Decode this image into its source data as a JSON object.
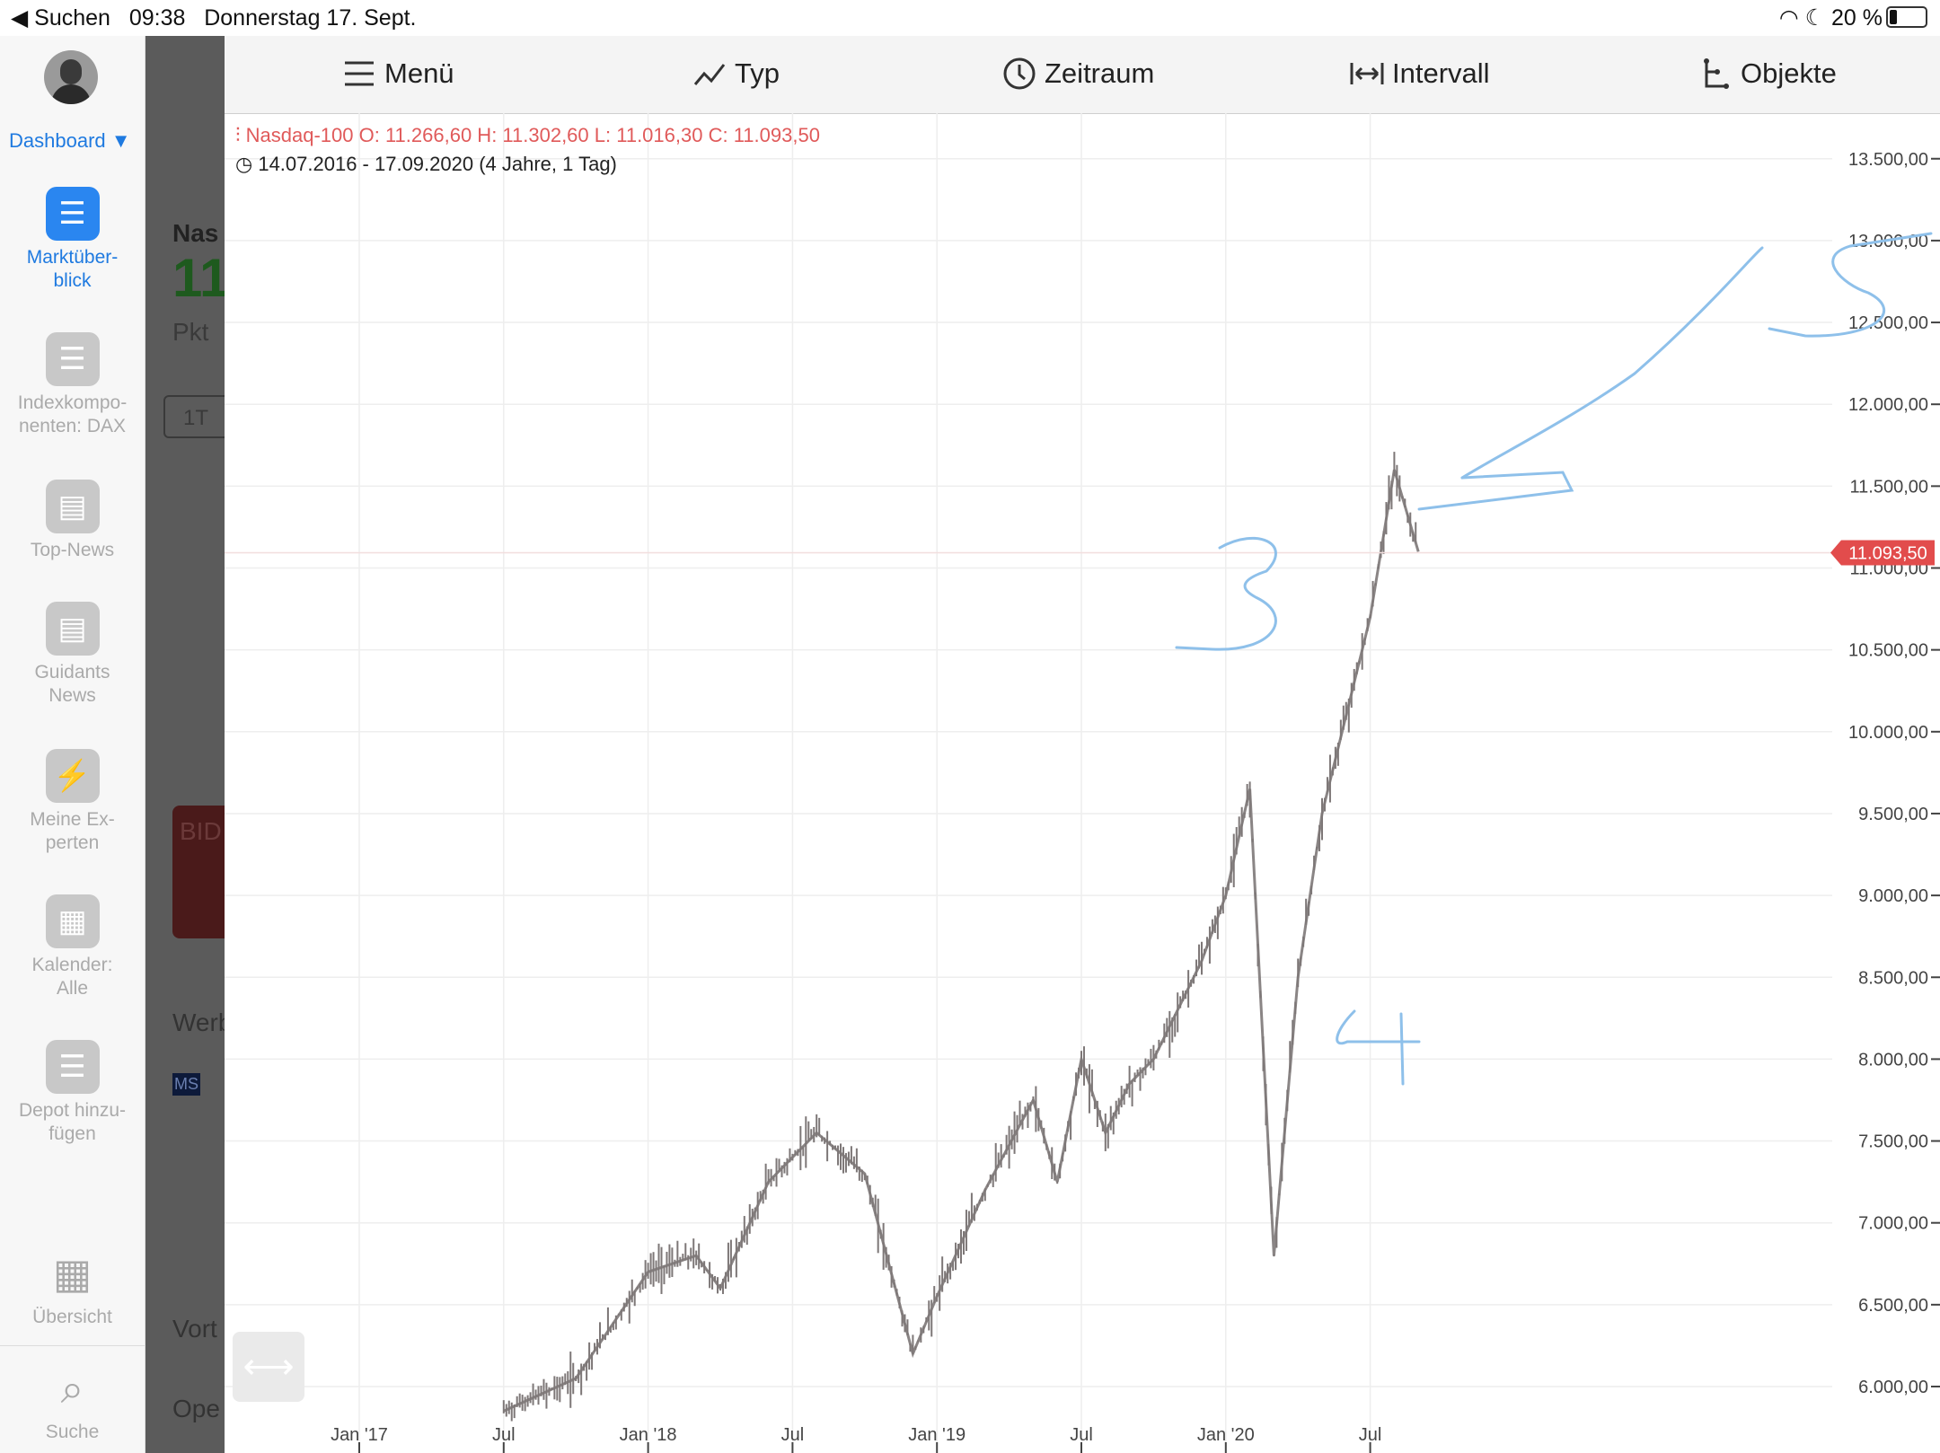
{
  "status": {
    "back_label": "◀ Suchen",
    "time": "09:38",
    "date": "Donnerstag 17. Sept.",
    "battery": "20 %"
  },
  "sidebar": {
    "dashboard_label": "Dashboard ▼",
    "items": [
      {
        "label": "Marktüber-\nblick",
        "icon": "list-icon",
        "active": true
      },
      {
        "label": "Indexkompo-\nnenten: DAX",
        "icon": "list-icon"
      },
      {
        "label": "Top-News",
        "icon": "news-icon"
      },
      {
        "label": "Guidants\nNews",
        "icon": "news-icon"
      },
      {
        "label": "Meine Ex-\nperten",
        "icon": "bolt-icon"
      },
      {
        "label": "Kalender:\nAlle",
        "icon": "calendar-icon"
      },
      {
        "label": "Depot hinzu-\nfügen",
        "icon": "list-icon"
      },
      {
        "label": "Übersicht",
        "icon": "grid-icon"
      },
      {
        "label": "Suche",
        "icon": "search-icon"
      }
    ]
  },
  "dim_panel": {
    "texts": [
      "Nas",
      "11",
      "Pkt",
      "1T",
      "BID",
      "Werb",
      "MS",
      "Vort",
      "Ope"
    ]
  },
  "toolbar": {
    "menu": "Menü",
    "type": "Typ",
    "range": "Zeitraum",
    "interval": "Intervall",
    "objects": "Objekte"
  },
  "legend": {
    "quote": "Nasdaq-100  O: 11.266,60  H: 11.302,60  L: 11.016,30  C: 11.093,50",
    "period": "14.07.2016 - 17.09.2020   (4 Jahre, 1 Tag)"
  },
  "chart_data": {
    "type": "line",
    "title": "Nasdaq-100",
    "current_value_label": "11.093,50",
    "current_value": 11093.5,
    "ylim": [
      6000,
      14000
    ],
    "y_ticks": [
      6000,
      6500,
      7000,
      7500,
      8000,
      8500,
      9000,
      9500,
      10000,
      10500,
      11000,
      11500,
      12000,
      12500,
      13000,
      13500
    ],
    "y_tick_labels": [
      "6.000,00",
      "6.500,00",
      "7.000,00",
      "7.500,00",
      "8.000,00",
      "8.500,00",
      "9.000,00",
      "9.500,00",
      "10.000,00",
      "10.500,00",
      "11.000,00",
      "11.500,00",
      "12.000,00",
      "12.500,00",
      "13.000,00",
      "13.500,00"
    ],
    "x_tick_labels": [
      "Jan '17",
      "Jul",
      "Jan '18",
      "Jul",
      "Jan '19",
      "Jul",
      "Jan '20",
      "Jul"
    ],
    "x_ticks": [
      "2017-01",
      "2017-07",
      "2018-01",
      "2018-07",
      "2019-01",
      "2019-07",
      "2020-01",
      "2020-07"
    ],
    "series": [
      {
        "x": [
          "2017-07",
          "2017-10",
          "2018-01",
          "2018-03",
          "2018-04",
          "2018-06",
          "2018-08",
          "2018-10",
          "2018-12",
          "2019-01",
          "2019-03",
          "2019-05",
          "2019-06",
          "2019-07",
          "2019-08",
          "2019-09",
          "2019-10",
          "2019-11",
          "2019-12",
          "2020-01",
          "2020-02",
          "2020-03",
          "2020-04",
          "2020-05",
          "2020-06",
          "2020-07",
          "2020-08",
          "2020-09"
        ],
        "y": [
          5850,
          6050,
          6700,
          6800,
          6600,
          7250,
          7550,
          7300,
          6200,
          6550,
          7200,
          7750,
          7250,
          8000,
          7550,
          7850,
          8000,
          8300,
          8600,
          9000,
          9650,
          6800,
          8500,
          9500,
          10100,
          10700,
          11600,
          11100
        ]
      }
    ],
    "annotations": [
      "3",
      "4",
      "5"
    ]
  }
}
